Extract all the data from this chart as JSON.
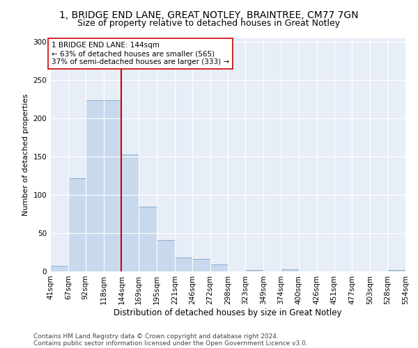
{
  "title1": "1, BRIDGE END LANE, GREAT NOTLEY, BRAINTREE, CM77 7GN",
  "title2": "Size of property relative to detached houses in Great Notley",
  "xlabel": "Distribution of detached houses by size in Great Notley",
  "ylabel": "Number of detached properties",
  "bin_edges": [
    41,
    67,
    92,
    118,
    144,
    169,
    195,
    221,
    246,
    272,
    298,
    323,
    349,
    374,
    400,
    426,
    451,
    477,
    503,
    528,
    554
  ],
  "bar_heights": [
    7,
    122,
    224,
    224,
    153,
    85,
    41,
    18,
    16,
    9,
    0,
    2,
    0,
    3,
    0,
    0,
    0,
    0,
    0,
    2
  ],
  "bar_color": "#c9d9ed",
  "bar_edge_color": "#7aa6cc",
  "property_size": 144,
  "property_line_color": "#cc0000",
  "annotation_text": "1 BRIDGE END LANE: 144sqm\n← 63% of detached houses are smaller (565)\n37% of semi-detached houses are larger (333) →",
  "annotation_box_color": "#ffffff",
  "annotation_box_edge_color": "#cc0000",
  "ylim": [
    0,
    305
  ],
  "yticks": [
    0,
    50,
    100,
    150,
    200,
    250,
    300
  ],
  "footer1": "Contains HM Land Registry data © Crown copyright and database right 2024.",
  "footer2": "Contains public sector information licensed under the Open Government Licence v3.0.",
  "background_color": "#ffffff",
  "plot_background": "#e8eef7",
  "grid_color": "#ffffff",
  "title1_fontsize": 10,
  "title2_fontsize": 9,
  "xlabel_fontsize": 8.5,
  "ylabel_fontsize": 8,
  "tick_fontsize": 7.5,
  "footer_fontsize": 6.5,
  "ann_fontsize": 7.5
}
